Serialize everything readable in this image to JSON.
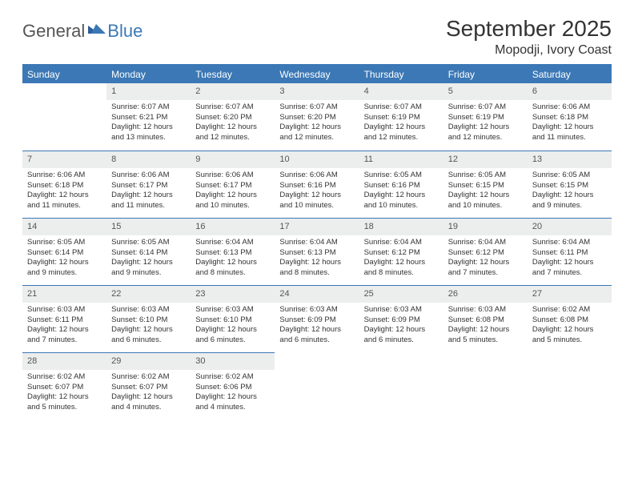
{
  "logo": {
    "part1": "General",
    "part2": "Blue"
  },
  "title": "September 2025",
  "location": "Mopodji, Ivory Coast",
  "colors": {
    "header_bg": "#3b78b5",
    "header_text": "#ffffff",
    "daynum_bg": "#eceded",
    "row_divider": "#3b78b5",
    "text": "#333333",
    "page_bg": "#ffffff",
    "logo_blue": "#3b78b5",
    "logo_gray": "#555555"
  },
  "weekdays": [
    "Sunday",
    "Monday",
    "Tuesday",
    "Wednesday",
    "Thursday",
    "Friday",
    "Saturday"
  ],
  "weeks": [
    [
      null,
      {
        "n": "1",
        "sunrise": "6:07 AM",
        "sunset": "6:21 PM",
        "daylight": "12 hours and 13 minutes."
      },
      {
        "n": "2",
        "sunrise": "6:07 AM",
        "sunset": "6:20 PM",
        "daylight": "12 hours and 12 minutes."
      },
      {
        "n": "3",
        "sunrise": "6:07 AM",
        "sunset": "6:20 PM",
        "daylight": "12 hours and 12 minutes."
      },
      {
        "n": "4",
        "sunrise": "6:07 AM",
        "sunset": "6:19 PM",
        "daylight": "12 hours and 12 minutes."
      },
      {
        "n": "5",
        "sunrise": "6:07 AM",
        "sunset": "6:19 PM",
        "daylight": "12 hours and 12 minutes."
      },
      {
        "n": "6",
        "sunrise": "6:06 AM",
        "sunset": "6:18 PM",
        "daylight": "12 hours and 11 minutes."
      }
    ],
    [
      {
        "n": "7",
        "sunrise": "6:06 AM",
        "sunset": "6:18 PM",
        "daylight": "12 hours and 11 minutes."
      },
      {
        "n": "8",
        "sunrise": "6:06 AM",
        "sunset": "6:17 PM",
        "daylight": "12 hours and 11 minutes."
      },
      {
        "n": "9",
        "sunrise": "6:06 AM",
        "sunset": "6:17 PM",
        "daylight": "12 hours and 10 minutes."
      },
      {
        "n": "10",
        "sunrise": "6:06 AM",
        "sunset": "6:16 PM",
        "daylight": "12 hours and 10 minutes."
      },
      {
        "n": "11",
        "sunrise": "6:05 AM",
        "sunset": "6:16 PM",
        "daylight": "12 hours and 10 minutes."
      },
      {
        "n": "12",
        "sunrise": "6:05 AM",
        "sunset": "6:15 PM",
        "daylight": "12 hours and 10 minutes."
      },
      {
        "n": "13",
        "sunrise": "6:05 AM",
        "sunset": "6:15 PM",
        "daylight": "12 hours and 9 minutes."
      }
    ],
    [
      {
        "n": "14",
        "sunrise": "6:05 AM",
        "sunset": "6:14 PM",
        "daylight": "12 hours and 9 minutes."
      },
      {
        "n": "15",
        "sunrise": "6:05 AM",
        "sunset": "6:14 PM",
        "daylight": "12 hours and 9 minutes."
      },
      {
        "n": "16",
        "sunrise": "6:04 AM",
        "sunset": "6:13 PM",
        "daylight": "12 hours and 8 minutes."
      },
      {
        "n": "17",
        "sunrise": "6:04 AM",
        "sunset": "6:13 PM",
        "daylight": "12 hours and 8 minutes."
      },
      {
        "n": "18",
        "sunrise": "6:04 AM",
        "sunset": "6:12 PM",
        "daylight": "12 hours and 8 minutes."
      },
      {
        "n": "19",
        "sunrise": "6:04 AM",
        "sunset": "6:12 PM",
        "daylight": "12 hours and 7 minutes."
      },
      {
        "n": "20",
        "sunrise": "6:04 AM",
        "sunset": "6:11 PM",
        "daylight": "12 hours and 7 minutes."
      }
    ],
    [
      {
        "n": "21",
        "sunrise": "6:03 AM",
        "sunset": "6:11 PM",
        "daylight": "12 hours and 7 minutes."
      },
      {
        "n": "22",
        "sunrise": "6:03 AM",
        "sunset": "6:10 PM",
        "daylight": "12 hours and 6 minutes."
      },
      {
        "n": "23",
        "sunrise": "6:03 AM",
        "sunset": "6:10 PM",
        "daylight": "12 hours and 6 minutes."
      },
      {
        "n": "24",
        "sunrise": "6:03 AM",
        "sunset": "6:09 PM",
        "daylight": "12 hours and 6 minutes."
      },
      {
        "n": "25",
        "sunrise": "6:03 AM",
        "sunset": "6:09 PM",
        "daylight": "12 hours and 6 minutes."
      },
      {
        "n": "26",
        "sunrise": "6:03 AM",
        "sunset": "6:08 PM",
        "daylight": "12 hours and 5 minutes."
      },
      {
        "n": "27",
        "sunrise": "6:02 AM",
        "sunset": "6:08 PM",
        "daylight": "12 hours and 5 minutes."
      }
    ],
    [
      {
        "n": "28",
        "sunrise": "6:02 AM",
        "sunset": "6:07 PM",
        "daylight": "12 hours and 5 minutes."
      },
      {
        "n": "29",
        "sunrise": "6:02 AM",
        "sunset": "6:07 PM",
        "daylight": "12 hours and 4 minutes."
      },
      {
        "n": "30",
        "sunrise": "6:02 AM",
        "sunset": "6:06 PM",
        "daylight": "12 hours and 4 minutes."
      },
      null,
      null,
      null,
      null
    ]
  ],
  "labels": {
    "sunrise": "Sunrise:",
    "sunset": "Sunset:",
    "daylight": "Daylight:"
  }
}
